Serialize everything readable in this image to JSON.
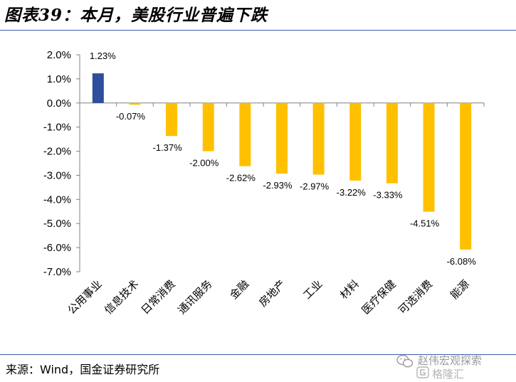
{
  "header": {
    "title": "图表39：本月，美股行业普遍下跌"
  },
  "footer": {
    "source": "来源：Wind，国金证券研究所"
  },
  "watermark": {
    "line1": "赵伟宏观探索",
    "line2": "格隆汇",
    "icon": "wechat-icon",
    "logo": "gelonghui-logo-icon"
  },
  "chart_data": {
    "type": "bar",
    "title": "",
    "xlabel": "",
    "ylabel": "",
    "ylim": [
      -7.0,
      2.0
    ],
    "y_ticks": [
      "2.0%",
      "1.0%",
      "0.0%",
      "-1.0%",
      "-2.0%",
      "-3.0%",
      "-4.0%",
      "-5.0%",
      "-6.0%",
      "-7.0%"
    ],
    "y_tick_values": [
      2,
      1,
      0,
      -1,
      -2,
      -3,
      -4,
      -5,
      -6,
      -7
    ],
    "categories": [
      "公用事业",
      "信息技术",
      "日常消费",
      "通讯服务",
      "金融",
      "房地产",
      "工业",
      "材料",
      "医疗保健",
      "可选消费",
      "能源"
    ],
    "values": [
      1.23,
      -0.07,
      -1.37,
      -2.0,
      -2.62,
      -2.93,
      -2.97,
      -3.22,
      -3.33,
      -4.51,
      -6.08
    ],
    "value_labels": [
      "1.23%",
      "-0.07%",
      "-1.37%",
      "-2.00%",
      "-2.62%",
      "-2.93%",
      "-2.97%",
      "-3.22%",
      "-3.33%",
      "-4.51%",
      "-6.08%"
    ],
    "colors": {
      "positive": "#2e4d9b",
      "negative": "#ffc000"
    },
    "grid": false,
    "legend": "none"
  }
}
